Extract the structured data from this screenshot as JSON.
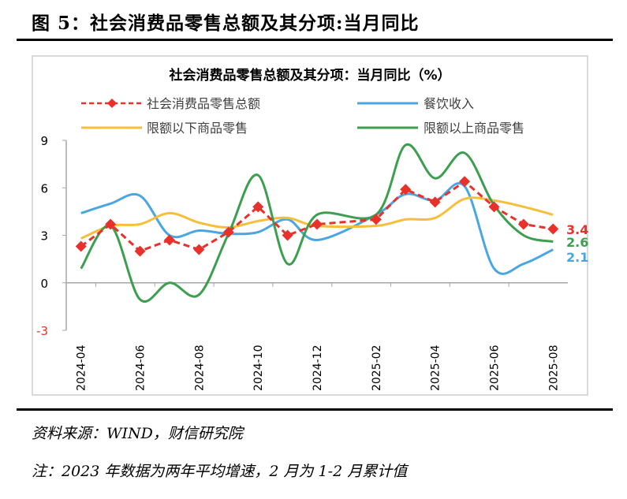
{
  "figure_title": "图 5：社会消费品零售总额及其分项:当月同比",
  "source": "资料来源：WIND，财信研究院",
  "note": "注：2023 年数据为两年平均增速，2 月为 1-2 月累计值",
  "chart_data": {
    "type": "line",
    "title": "社会消费品零售总额及其分项：当月同比（%）",
    "categories": [
      "2024-04",
      "2024-05",
      "2024-06",
      "2024-07",
      "2024-08",
      "2024-09",
      "2024-10",
      "2024-11",
      "2024-12",
      "2025-01",
      "2025-02",
      "2025-03",
      "2025-04",
      "2025-05",
      "2025-06",
      "2025-07",
      "2025-08"
    ],
    "tick_labels": [
      "2024-04",
      "2024-06",
      "2024-08",
      "2024-10",
      "2024-12",
      "2025-02",
      "2025-04",
      "2025-06",
      "2025-08"
    ],
    "ylim": [
      -3,
      9
    ],
    "yticks": [
      "9",
      "6",
      "3",
      "0",
      "-3"
    ],
    "grid": false,
    "legend_position": "top",
    "series": [
      {
        "name": "社会消费品零售总额",
        "color": "#e8312b",
        "style": "dashed-diamond",
        "values": [
          2.3,
          3.7,
          2.0,
          2.7,
          2.1,
          3.2,
          4.8,
          3.0,
          3.7,
          null,
          4.0,
          5.9,
          5.1,
          6.4,
          4.8,
          3.7,
          3.4
        ],
        "end_label": "3.4"
      },
      {
        "name": "餐饮收入",
        "color": "#4aa6e0",
        "style": "smooth",
        "values": [
          4.4,
          5.0,
          5.5,
          3.0,
          3.3,
          3.1,
          3.2,
          4.0,
          2.7,
          null,
          4.3,
          5.6,
          5.2,
          6.1,
          0.9,
          1.2,
          2.1
        ],
        "end_label": "2.1"
      },
      {
        "name": "限额以下商品零售",
        "color": "#f5bf3c",
        "style": "smooth",
        "values": [
          2.8,
          3.6,
          3.7,
          4.4,
          3.8,
          3.5,
          3.9,
          4.1,
          3.6,
          null,
          3.6,
          4.0,
          4.1,
          5.3,
          5.2,
          4.8,
          4.3
        ]
      },
      {
        "name": "限额以上商品零售",
        "color": "#3c9e4f",
        "style": "smooth",
        "values": [
          0.9,
          3.6,
          -1.05,
          0.0,
          -0.75,
          3.1,
          6.8,
          1.2,
          4.3,
          null,
          4.3,
          8.7,
          6.6,
          8.2,
          4.9,
          3.0,
          2.6
        ],
        "end_label": "2.6"
      }
    ]
  }
}
